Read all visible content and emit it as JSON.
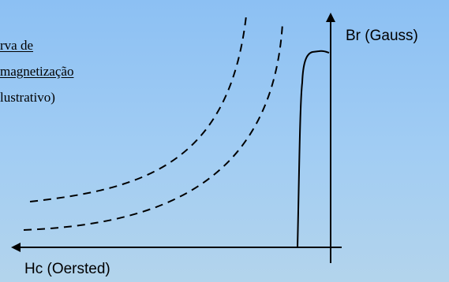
{
  "caption": {
    "line1": "rva de",
    "line2": "magnetização",
    "line3": "lustrativo)"
  },
  "axes": {
    "y_label": "Br (Gauss)",
    "x_label": "Hc (Oersted)"
  },
  "colors": {
    "background_top": "#8cc0f3",
    "background_bottom": "#b3d4ec",
    "stroke": "#000000"
  }
}
